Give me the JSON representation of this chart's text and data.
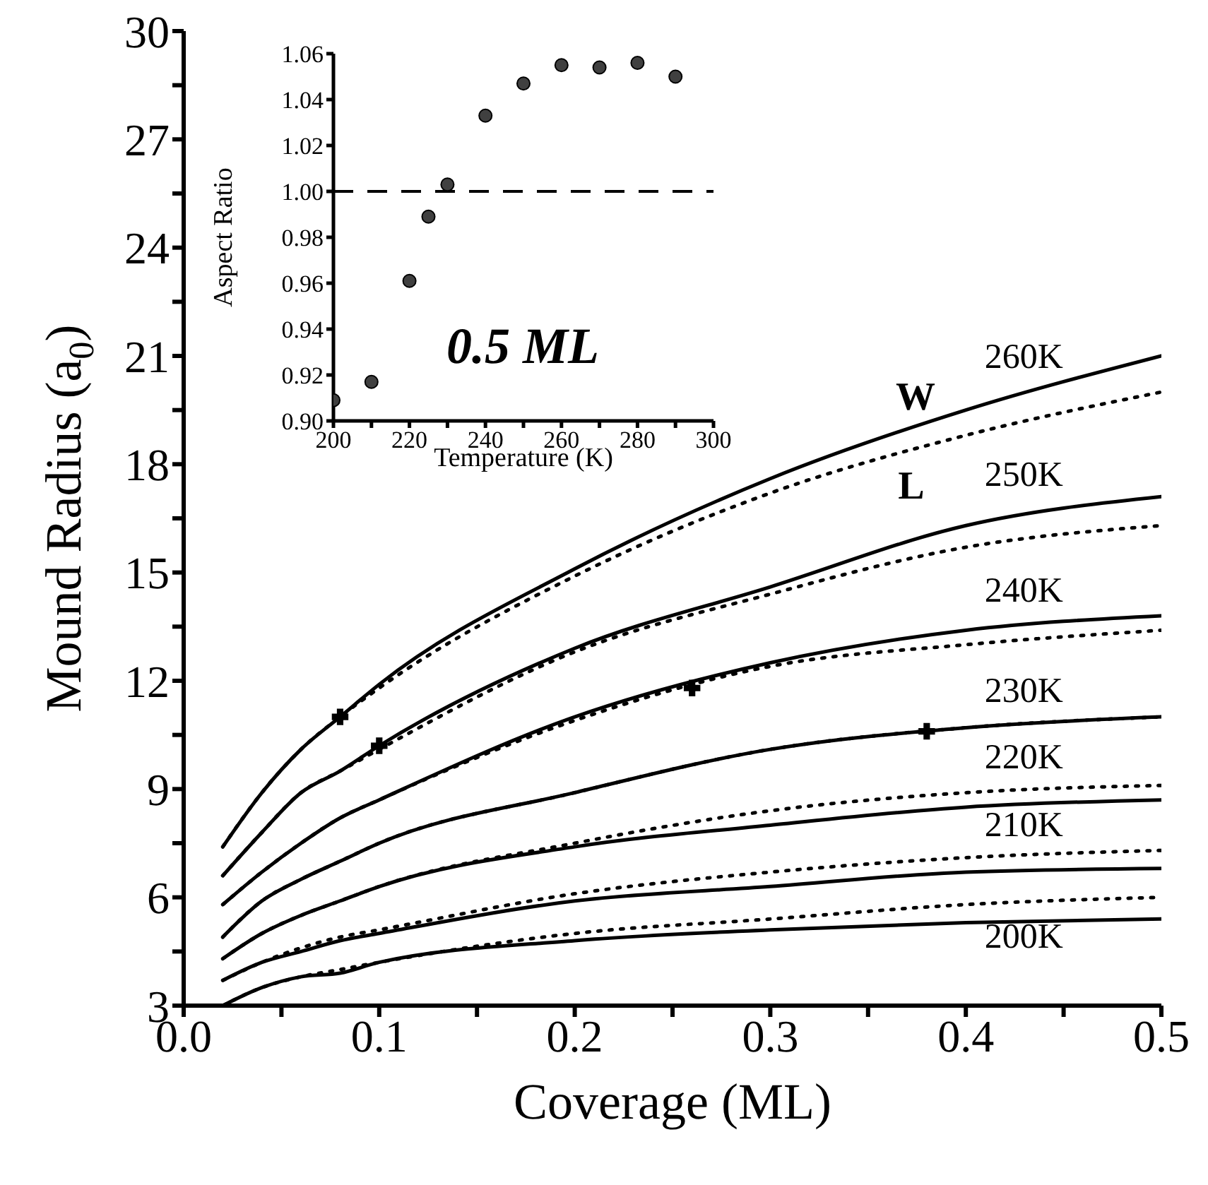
{
  "chart_data": [
    {
      "type": "line",
      "xlabel": "Coverage (ML)",
      "ylabel": "Mound Radius (a$_{0}$)",
      "x": [
        0.02,
        0.04,
        0.06,
        0.08,
        0.1,
        0.2,
        0.3,
        0.4,
        0.5
      ],
      "xlim": [
        0,
        0.5
      ],
      "xticks": [
        {
          "value": 0,
          "label": "0.0"
        },
        {
          "value": 0.05,
          "label": null
        },
        0.1,
        {
          "value": 0.15,
          "label": null
        },
        0.2,
        {
          "value": 0.25,
          "label": null
        },
        0.3,
        {
          "value": 0.35,
          "label": null
        },
        0.4,
        {
          "value": 0.45,
          "label": null
        },
        0.5
      ],
      "ylim": [
        3,
        30
      ],
      "yticks": [
        3,
        {
          "value": 4.5,
          "label": null
        },
        6,
        {
          "value": 7.5,
          "label": null
        },
        9,
        {
          "value": 10.5,
          "label": null
        },
        12,
        {
          "value": 13.5,
          "label": null
        },
        15,
        {
          "value": 16.5,
          "label": null
        },
        18,
        {
          "value": 19.5,
          "label": null
        },
        21,
        {
          "value": 22.5,
          "label": null
        },
        24,
        {
          "value": 25.5,
          "label": null
        },
        27,
        {
          "value": 28.5,
          "label": null
        },
        30
      ],
      "series": [
        {
          "name": "260K",
          "color": "#000000",
          "line_style": "solid",
          "marker": "none",
          "values": [
            7.4,
            8.9,
            10.1,
            11.0,
            11.9,
            15.1,
            17.6,
            19.5,
            21.0
          ]
        },
        {
          "color": "#000000",
          "line_style": "dotted",
          "marker": "none",
          "values": [
            7.4,
            8.9,
            10.1,
            11.0,
            11.8,
            14.9,
            17.2,
            18.8,
            20.0
          ]
        },
        {
          "name": "250K",
          "color": "#000000",
          "line_style": "solid",
          "marker": "none",
          "values": [
            6.6,
            7.8,
            8.9,
            9.5,
            10.2,
            12.9,
            14.6,
            16.3,
            17.1
          ]
        },
        {
          "color": "#000000",
          "line_style": "dotted",
          "marker": "none",
          "values": [
            6.6,
            7.8,
            8.9,
            9.5,
            10.1,
            12.8,
            14.4,
            15.7,
            16.3
          ]
        },
        {
          "name": "240K",
          "color": "#000000",
          "line_style": "solid",
          "marker": "none",
          "values": [
            5.8,
            6.7,
            7.5,
            8.2,
            8.7,
            11.0,
            12.5,
            13.4,
            13.8
          ]
        },
        {
          "color": "#000000",
          "line_style": "dotted",
          "marker": "none",
          "values": [
            5.8,
            6.7,
            7.5,
            8.2,
            8.7,
            10.9,
            12.4,
            13.0,
            13.4
          ]
        },
        {
          "name": "230K",
          "color": "#000000",
          "line_style": "solid",
          "marker": "none",
          "values": [
            4.9,
            5.9,
            6.5,
            7.0,
            7.5,
            8.9,
            10.1,
            10.7,
            11.0
          ]
        },
        {
          "color": "#000000",
          "line_style": "dotted",
          "marker": "none",
          "values": [
            4.9,
            5.9,
            6.5,
            7.0,
            7.5,
            8.9,
            10.1,
            10.7,
            11.0
          ]
        },
        {
          "color": "#000000",
          "line_style": "solid",
          "marker": "none",
          "values": [
            4.3,
            5.0,
            5.5,
            5.9,
            6.3,
            7.4,
            8.0,
            8.5,
            8.7
          ]
        },
        {
          "name": "220K",
          "color": "#000000",
          "line_style": "dotted",
          "marker": "none",
          "values": [
            4.3,
            5.0,
            5.5,
            5.9,
            6.3,
            7.5,
            8.4,
            8.9,
            9.1
          ]
        },
        {
          "color": "#000000",
          "line_style": "solid",
          "marker": "none",
          "values": [
            3.7,
            4.2,
            4.5,
            4.8,
            5.0,
            5.9,
            6.3,
            6.7,
            6.8
          ]
        },
        {
          "name": "210K",
          "color": "#000000",
          "line_style": "dotted",
          "marker": "none",
          "values": [
            3.7,
            4.2,
            4.6,
            4.9,
            5.1,
            6.1,
            6.7,
            7.1,
            7.3
          ]
        },
        {
          "name": "200K",
          "color": "#000000",
          "line_style": "solid",
          "marker": "none",
          "values": [
            3.0,
            3.5,
            3.8,
            3.9,
            4.2,
            4.8,
            5.1,
            5.3,
            5.4
          ]
        },
        {
          "color": "#000000",
          "line_style": "dotted",
          "marker": "none",
          "values": [
            3.0,
            3.5,
            3.8,
            4.0,
            4.2,
            5.0,
            5.4,
            5.8,
            6.0
          ]
        },
        {
          "type": "scatter",
          "color": "#000000",
          "marker": "cross",
          "x": [
            0.08,
            0.1,
            0.26,
            0.38
          ],
          "values": [
            11.0,
            10.2,
            11.8,
            10.6
          ]
        }
      ],
      "annotations": [
        "W",
        "L"
      ]
    },
    {
      "type": "scatter",
      "xlabel": "Temperature (K)",
      "ylabel": "Aspect Ratio",
      "x": [
        200,
        210,
        220,
        225,
        230,
        240,
        250,
        260,
        270,
        280,
        290
      ],
      "xlim": [
        200,
        300
      ],
      "xticks": [
        200,
        {
          "value": 210,
          "label": null
        },
        220,
        {
          "value": 230,
          "label": null
        },
        240,
        {
          "value": 250,
          "label": null
        },
        260,
        {
          "value": 270,
          "label": null
        },
        280,
        {
          "value": 290,
          "label": null
        },
        300
      ],
      "ylim": [
        0.9,
        1.06
      ],
      "yticks": [
        {
          "value": 0.9,
          "label": "0.90"
        },
        0.92,
        0.94,
        0.96,
        0.98,
        {
          "value": 1.0,
          "label": "1.00"
        },
        1.02,
        1.04,
        1.06
      ],
      "series": [
        {
          "color": "#404040",
          "marker": "circle",
          "values": [
            0.909,
            0.917,
            0.961,
            0.989,
            1.003,
            1.033,
            1.047,
            1.055,
            1.054,
            1.056,
            1.05
          ]
        }
      ],
      "ref_lines": [
        {
          "axis": "y",
          "value": 1.0,
          "label": null,
          "color": "#000000",
          "line_style": "dashed"
        }
      ],
      "annotations": [
        "0.5 ML"
      ]
    }
  ]
}
